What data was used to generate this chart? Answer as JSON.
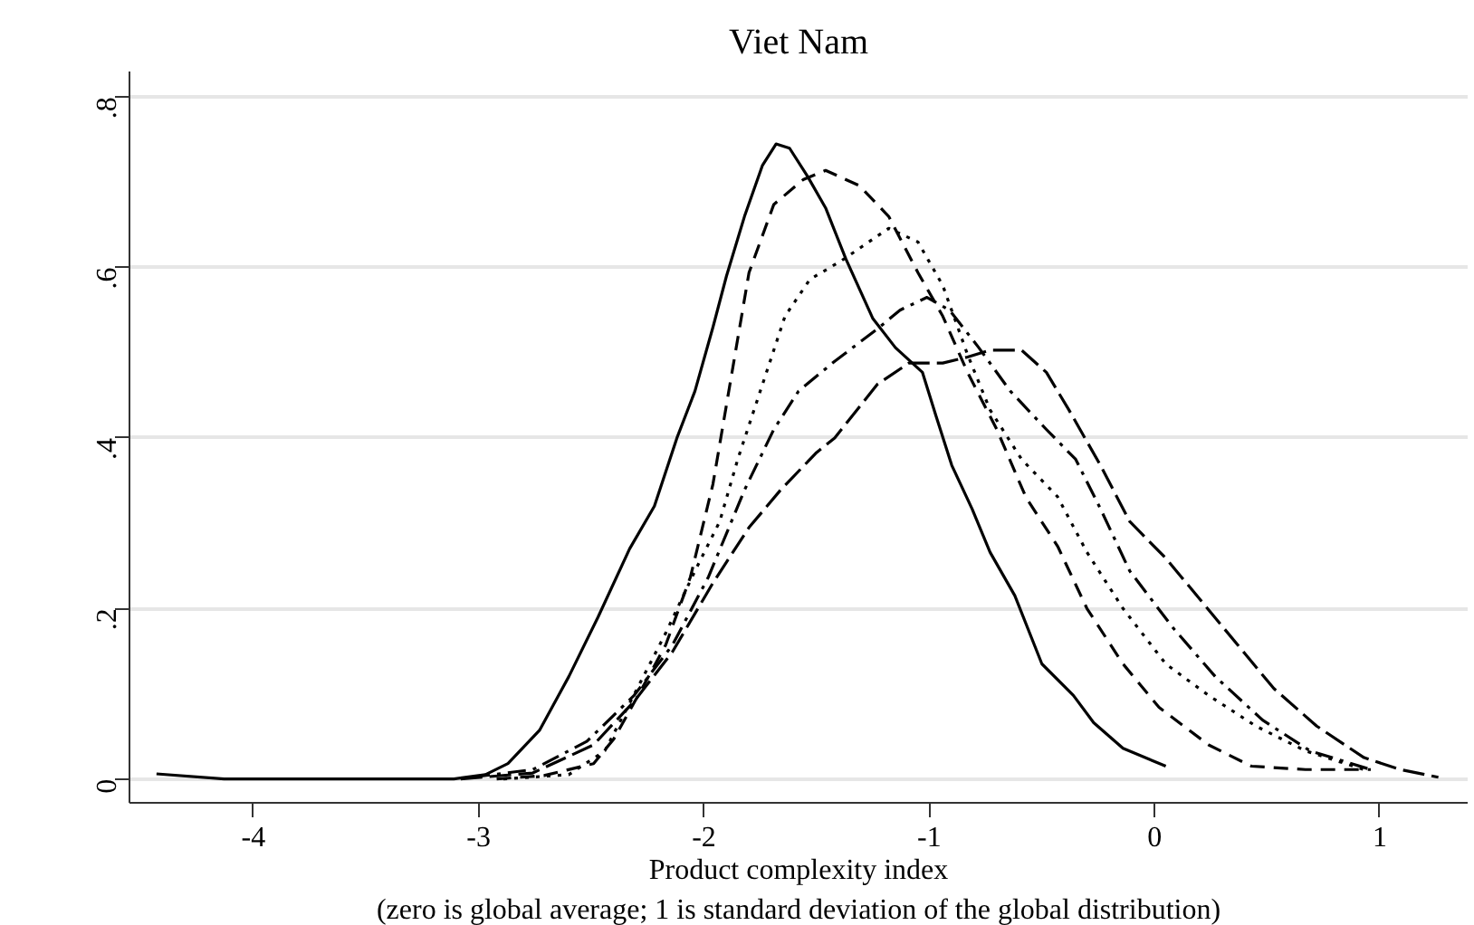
{
  "chart_data": {
    "type": "line",
    "title": "Viet Nam",
    "xlabel": "Product complexity index",
    "annotations": [
      "(zero is global average; 1 is standard deviation of the global distribution)"
    ],
    "xlim": [
      -4.55,
      1.39
    ],
    "ylim": [
      -0.028,
      0.83
    ],
    "xticks": [
      -4,
      -3,
      -2,
      -1,
      0,
      1
    ],
    "yticks": [
      {
        "value": 0,
        "label": "0"
      },
      {
        "value": 0.2,
        "label": ".2"
      },
      {
        "value": 0.4,
        "label": ".4"
      },
      {
        "value": 0.6,
        "label": ".6"
      },
      {
        "value": 0.8,
        "label": ".8"
      }
    ],
    "grid": "y",
    "series": [
      {
        "color": "#000000",
        "line_style": "solid",
        "x": [
          -4.43,
          -4.13,
          -3.11,
          -2.97,
          -2.87,
          -2.73,
          -2.6,
          -2.47,
          -2.33,
          -2.22,
          -2.12,
          -2.04,
          -1.96,
          -1.9,
          -1.82,
          -1.74,
          -1.68,
          -1.62,
          -1.54,
          -1.46,
          -1.37,
          -1.25,
          -1.15,
          -1.03,
          -0.97,
          -0.9,
          -0.81,
          -0.73,
          -0.62,
          -0.5,
          -0.36,
          -0.27,
          -0.14,
          0.05
        ],
        "values": [
          0.006,
          0,
          0,
          0.005,
          0.018,
          0.057,
          0.12,
          0.19,
          0.27,
          0.32,
          0.4,
          0.455,
          0.53,
          0.59,
          0.66,
          0.72,
          0.745,
          0.74,
          0.707,
          0.67,
          0.61,
          0.54,
          0.506,
          0.477,
          0.426,
          0.368,
          0.317,
          0.266,
          0.215,
          0.135,
          0.098,
          0.066,
          0.036,
          0.015
        ]
      },
      {
        "color": "#000000",
        "line_style": "dashed",
        "x": [
          -2.92,
          -2.71,
          -2.49,
          -2.4,
          -2.29,
          -2.17,
          -2.06,
          -1.96,
          -1.88,
          -1.8,
          -1.69,
          -1.56,
          -1.46,
          -1.31,
          -1.18,
          -1.05,
          -0.94,
          -0.83,
          -0.7,
          -0.57,
          -0.43,
          -0.3,
          -0.14,
          0.02,
          0.24,
          0.43,
          0.67,
          0.96
        ],
        "values": [
          0,
          0.004,
          0.018,
          0.047,
          0.099,
          0.157,
          0.237,
          0.346,
          0.47,
          0.594,
          0.674,
          0.703,
          0.714,
          0.696,
          0.66,
          0.594,
          0.543,
          0.477,
          0.41,
          0.33,
          0.273,
          0.2,
          0.135,
          0.084,
          0.04,
          0.015,
          0.011,
          0.011
        ]
      },
      {
        "color": "#000000",
        "line_style": "dotted",
        "x": [
          -2.89,
          -2.6,
          -2.44,
          -2.31,
          -2.17,
          -2.04,
          -1.93,
          -1.85,
          -1.74,
          -1.64,
          -1.53,
          -1.39,
          -1.18,
          -1.05,
          -0.94,
          -0.83,
          -0.73,
          -0.59,
          -0.43,
          -0.3,
          -0.14,
          0.05,
          0.24,
          0.45,
          0.67,
          0.93
        ],
        "values": [
          0,
          0.005,
          0.033,
          0.099,
          0.171,
          0.244,
          0.302,
          0.375,
          0.463,
          0.543,
          0.586,
          0.608,
          0.646,
          0.63,
          0.579,
          0.498,
          0.433,
          0.375,
          0.331,
          0.266,
          0.2,
          0.135,
          0.098,
          0.062,
          0.033,
          0.011
        ]
      },
      {
        "color": "#000000",
        "line_style": "dashdot",
        "x": [
          -3.03,
          -2.76,
          -2.52,
          -2.31,
          -2.14,
          -1.98,
          -1.82,
          -1.69,
          -1.58,
          -1.42,
          -1.23,
          -1.13,
          -1.01,
          -0.91,
          -0.78,
          -0.64,
          -0.48,
          -0.35,
          -0.24,
          -0.11,
          0.08,
          0.27,
          0.48,
          0.69,
          0.96
        ],
        "values": [
          0.002,
          0.011,
          0.044,
          0.098,
          0.157,
          0.237,
          0.339,
          0.41,
          0.455,
          0.49,
          0.528,
          0.55,
          0.565,
          0.55,
          0.506,
          0.455,
          0.41,
          0.375,
          0.317,
          0.244,
          0.178,
          0.12,
          0.069,
          0.033,
          0.011
        ]
      },
      {
        "color": "#000000",
        "line_style": "longdash",
        "x": [
          -3.08,
          -2.76,
          -2.49,
          -2.31,
          -2.14,
          -1.96,
          -1.8,
          -1.66,
          -1.5,
          -1.42,
          -1.23,
          -1.09,
          -0.94,
          -0.83,
          -0.73,
          -0.59,
          -0.48,
          -0.38,
          -0.24,
          -0.11,
          0.05,
          0.21,
          0.37,
          0.53,
          0.72,
          0.93,
          1.09,
          1.26
        ],
        "values": [
          0,
          0.007,
          0.04,
          0.091,
          0.149,
          0.23,
          0.295,
          0.339,
          0.383,
          0.4,
          0.463,
          0.488,
          0.488,
          0.495,
          0.503,
          0.503,
          0.477,
          0.433,
          0.368,
          0.302,
          0.259,
          0.208,
          0.157,
          0.106,
          0.062,
          0.025,
          0.011,
          0.002
        ]
      }
    ]
  }
}
